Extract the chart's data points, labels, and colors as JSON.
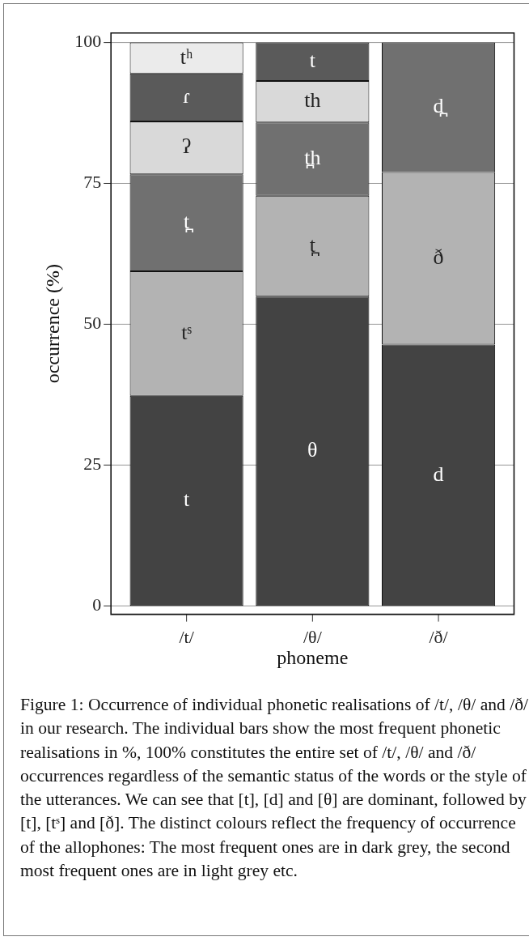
{
  "chart_data": {
    "type": "bar",
    "stacked": true,
    "xlabel": "phoneme",
    "ylabel": "occurrence (%)",
    "categories": [
      "/t/",
      "/θ/",
      "/ð/"
    ],
    "series": [
      {
        "color": "#434343",
        "values": [
          37.3,
          54.9,
          46.4
        ],
        "value_labels": [
          "t",
          "θ",
          "d"
        ]
      },
      {
        "color": "#b3b3b3",
        "values": [
          22.1,
          17.9,
          30.6
        ],
        "value_labels": [
          "tˢ",
          "t̪",
          "ð"
        ]
      },
      {
        "color": "#707070",
        "values": [
          17.2,
          13.0,
          23.0
        ],
        "value_labels": [
          "t̪",
          "t̪h",
          "d̪"
        ]
      },
      {
        "color": "#d9d9d9",
        "values": [
          9.4,
          7.4,
          null
        ],
        "value_labels": [
          "ʔ",
          "th",
          null
        ]
      },
      {
        "color": "#5a5a5a",
        "values": [
          8.5,
          6.8,
          null
        ],
        "value_labels": [
          "ɾ",
          "t",
          null
        ]
      },
      {
        "color": "#ebebeb",
        "values": [
          5.5,
          null,
          null
        ],
        "value_labels": [
          "tʰ",
          null,
          null
        ]
      }
    ],
    "ylim": [
      -1.5,
      101.7
    ],
    "yticks": [
      0,
      25,
      50,
      75,
      100
    ],
    "grid": "y",
    "legend": false,
    "annotations": [
      "Figure 1: Occurrence of individual phonetic realisations of /t/, /θ/ and /ð/ in our research. The individual bars show the most frequent phonetic realisations in %, 100% constitutes the entire set of /t/, /θ/ and /ð/ occurrences regardless of the semantic status of the words or the style of the utterances. We can see that [t], [d] and [θ] are dominant, followed by [t], [tˢ] and [ð]. The distinct colours reflect the frequency of occurrence of the allophones: The most frequent ones are in dark grey, the second most frequent ones are in light grey etc."
    ]
  }
}
